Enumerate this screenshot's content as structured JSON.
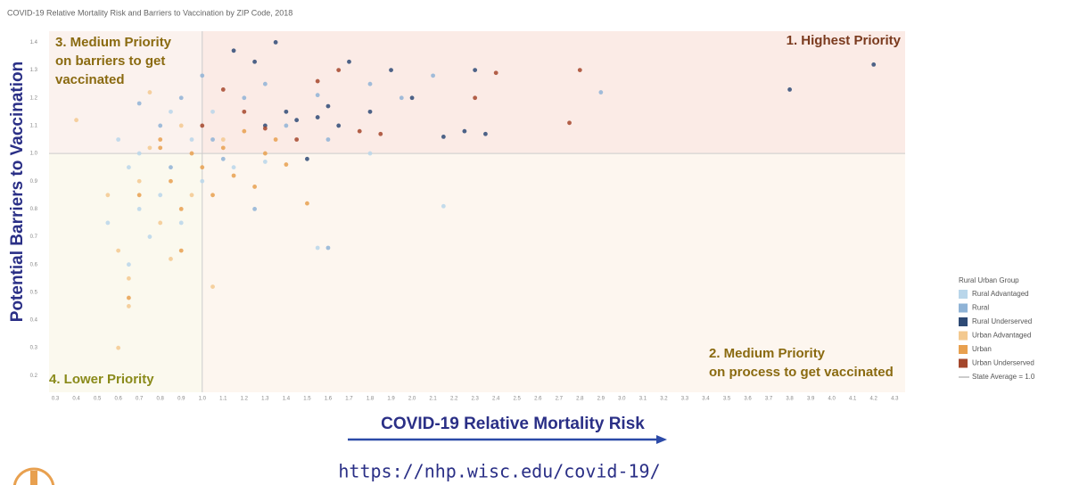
{
  "chart_data": {
    "type": "scatter",
    "title": "COVID-19 Relative Mortality Risk and Barriers to Vaccination by ZIP Code, 2018",
    "x_label": "COVID-19 Relative Mortality Risk",
    "y_label": "Potential Barriers to Vaccination",
    "url": "https://nhp.wisc.edu/covid-19/",
    "legend_title": "Rural Urban Group",
    "legend": "right",
    "grid": false,
    "reference_line": {
      "value": 1,
      "label": "State Average = 1.0"
    },
    "annotations": [
      {
        "lines": [
          "1. Highest Priority"
        ],
        "color": "#7a3a1e"
      },
      {
        "lines": [
          "2. Medium Priority",
          "on process to get vaccinated"
        ],
        "color": "#8a6a10"
      },
      {
        "lines": [
          "3. Medium Priority",
          "on barriers to get",
          "vaccinated"
        ],
        "color": "#8a6a10"
      },
      {
        "lines": [
          "4. Lower Priority"
        ],
        "color": "#8a8a1a"
      }
    ],
    "xlim": [
      0.27,
      4.35
    ],
    "ylim": [
      0.14,
      1.44
    ],
    "xticks": [
      0.3,
      0.4,
      0.5,
      0.6,
      0.7,
      0.8,
      0.9,
      {
        "value": 1,
        "label": "1.0"
      },
      1.1,
      1.2,
      1.3,
      1.4,
      1.5,
      1.6,
      1.7,
      1.8,
      1.9,
      {
        "value": 2,
        "label": "2.0"
      },
      2.1,
      2.2,
      2.3,
      2.4,
      2.5,
      2.6,
      2.7,
      2.8,
      2.9,
      {
        "value": 3,
        "label": "3.0"
      },
      3.1,
      3.2,
      3.3,
      3.4,
      3.5,
      3.6,
      3.7,
      3.8,
      3.9,
      {
        "value": 4,
        "label": "4.0"
      },
      4.1,
      4.2,
      4.3
    ],
    "yticks": [
      0.2,
      0.3,
      0.4,
      0.5,
      0.6,
      0.7,
      0.8,
      0.9,
      {
        "value": 1,
        "label": "1.0"
      },
      1.1,
      1.2,
      1.3,
      1.4
    ],
    "series": [
      {
        "name": "Rural Advantaged",
        "color": "#b9d6ea",
        "x": [
          0.6,
          0.65,
          0.7,
          0.75,
          0.8,
          0.85,
          0.9,
          0.95,
          1.0,
          0.65,
          0.55,
          1.05,
          1.15,
          1.3,
          1.55,
          2.15,
          1.8,
          0.7
        ],
        "values": [
          1.05,
          0.95,
          0.8,
          0.7,
          0.85,
          1.15,
          0.75,
          1.05,
          0.9,
          0.6,
          0.75,
          1.15,
          0.95,
          0.97,
          0.66,
          0.81,
          1.0,
          1.0
        ]
      },
      {
        "name": "Rural",
        "color": "#8fb3d6",
        "x": [
          0.7,
          0.8,
          0.9,
          1.05,
          1.2,
          1.3,
          1.4,
          1.6,
          1.55,
          1.8,
          1.95,
          2.9,
          1.1,
          0.85,
          1.25,
          1.6,
          1.0,
          2.1
        ],
        "values": [
          1.18,
          1.1,
          1.2,
          1.05,
          1.2,
          1.25,
          1.1,
          1.05,
          1.21,
          1.25,
          1.2,
          1.22,
          0.98,
          0.95,
          0.8,
          0.66,
          1.28,
          1.28
        ]
      },
      {
        "name": "Rural Underserved",
        "color": "#2e4a75",
        "x": [
          1.15,
          1.25,
          1.35,
          1.45,
          1.6,
          1.7,
          1.8,
          1.9,
          2.0,
          2.15,
          2.25,
          2.35,
          2.3,
          3.8,
          4.2,
          1.3,
          1.55,
          1.65,
          1.5,
          1.4
        ],
        "values": [
          1.37,
          1.33,
          1.4,
          1.12,
          1.17,
          1.33,
          1.15,
          1.3,
          1.2,
          1.06,
          1.08,
          1.07,
          1.3,
          1.23,
          1.32,
          1.1,
          1.13,
          1.1,
          0.98,
          1.15
        ]
      },
      {
        "name": "Urban Advantaged",
        "color": "#f3c98f",
        "x": [
          0.4,
          0.55,
          0.6,
          0.65,
          0.6,
          0.7,
          0.75,
          0.8,
          0.85,
          0.9,
          0.95,
          1.05,
          0.75,
          1.1,
          0.65
        ],
        "values": [
          1.12,
          0.85,
          0.65,
          0.45,
          0.3,
          0.9,
          1.02,
          0.75,
          0.62,
          1.1,
          0.85,
          0.52,
          1.22,
          1.05,
          0.55
        ]
      },
      {
        "name": "Urban",
        "color": "#e8a04f",
        "x": [
          0.65,
          0.7,
          0.8,
          0.85,
          0.9,
          0.95,
          1.0,
          1.05,
          1.1,
          1.15,
          1.2,
          1.25,
          1.3,
          1.4,
          1.5,
          0.9,
          0.8,
          1.35
        ],
        "values": [
          0.48,
          0.85,
          1.02,
          0.9,
          0.8,
          1.0,
          0.95,
          0.85,
          1.02,
          0.92,
          1.08,
          0.88,
          1.0,
          0.96,
          0.82,
          0.65,
          1.05,
          1.05
        ]
      },
      {
        "name": "Urban Underserved",
        "color": "#a4472c",
        "x": [
          1.0,
          1.2,
          1.3,
          1.55,
          1.75,
          1.85,
          2.3,
          2.4,
          2.8,
          2.75,
          1.45,
          1.65,
          1.1
        ],
        "values": [
          1.1,
          1.15,
          1.09,
          1.26,
          1.08,
          1.07,
          1.2,
          1.29,
          1.3,
          1.11,
          1.05,
          1.3,
          1.23
        ]
      }
    ]
  }
}
